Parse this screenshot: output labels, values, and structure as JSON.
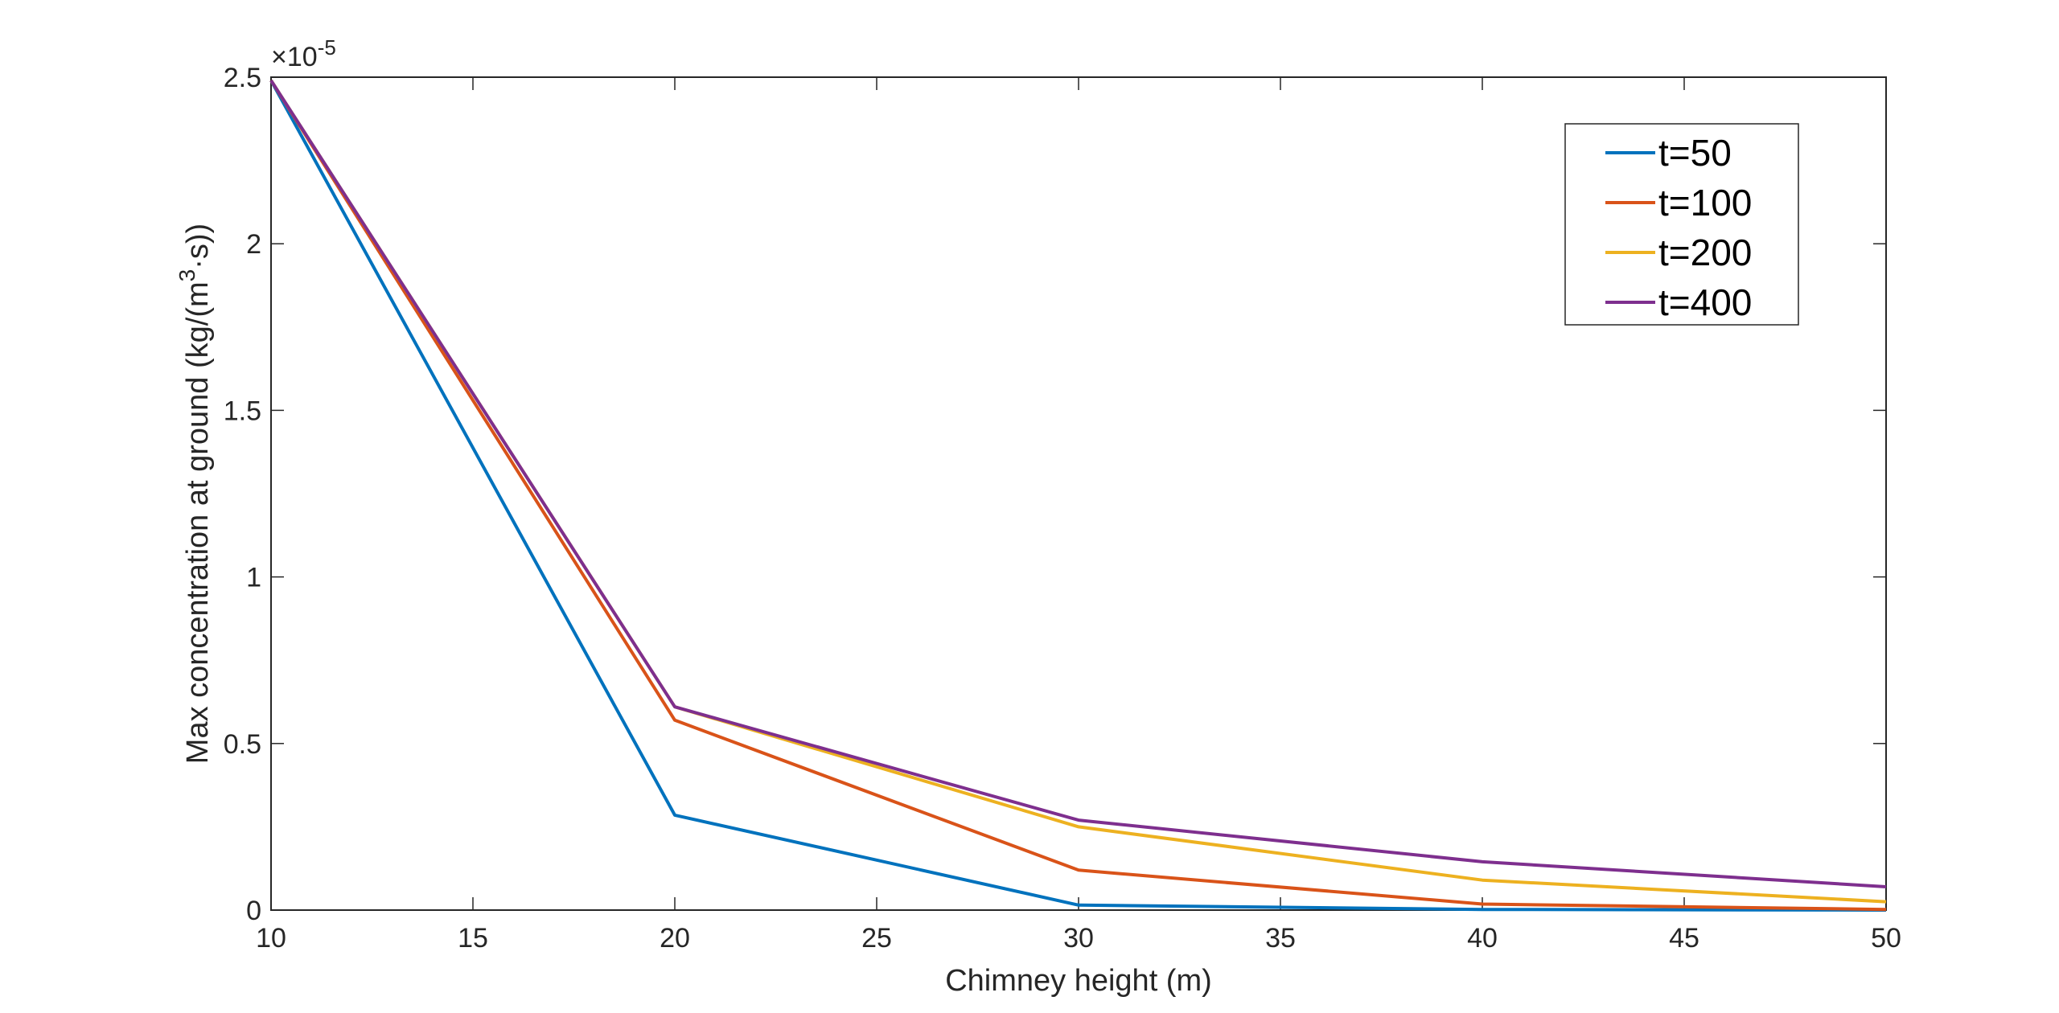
{
  "chart_data": {
    "type": "line",
    "title": "",
    "xlabel": "Chimney height (m)",
    "ylabel_parts": [
      "Max concentration at ground (kg/(m",
      "3",
      "·s))"
    ],
    "y_exponent_prefix": "×10",
    "y_exponent_power": "-5",
    "x": [
      10,
      20,
      30,
      40,
      50
    ],
    "xlim": [
      10,
      50
    ],
    "ylim": [
      0,
      2.5
    ],
    "x_ticks": [
      10,
      15,
      20,
      25,
      30,
      35,
      40,
      45,
      50
    ],
    "x_tick_labels": [
      "10",
      "15",
      "20",
      "25",
      "30",
      "35",
      "40",
      "45",
      "50"
    ],
    "y_ticks": [
      0,
      0.5,
      1,
      1.5,
      2,
      2.5
    ],
    "y_tick_labels": [
      "0",
      "0.5",
      "1",
      "1.5",
      "2",
      "2.5"
    ],
    "grid": false,
    "legend_position": "top-right",
    "series": [
      {
        "name": "t=50",
        "color": "#0072BD",
        "values": [
          2.49,
          0.285,
          0.015,
          0.002,
          0.0
        ]
      },
      {
        "name": "t=100",
        "color": "#D95319",
        "values": [
          2.49,
          0.57,
          0.12,
          0.018,
          0.002
        ]
      },
      {
        "name": "t=200",
        "color": "#EDB120",
        "values": [
          2.49,
          0.61,
          0.25,
          0.09,
          0.025
        ]
      },
      {
        "name": "t=400",
        "color": "#7E2F8E",
        "values": [
          2.49,
          0.61,
          0.27,
          0.145,
          0.07
        ]
      }
    ]
  }
}
